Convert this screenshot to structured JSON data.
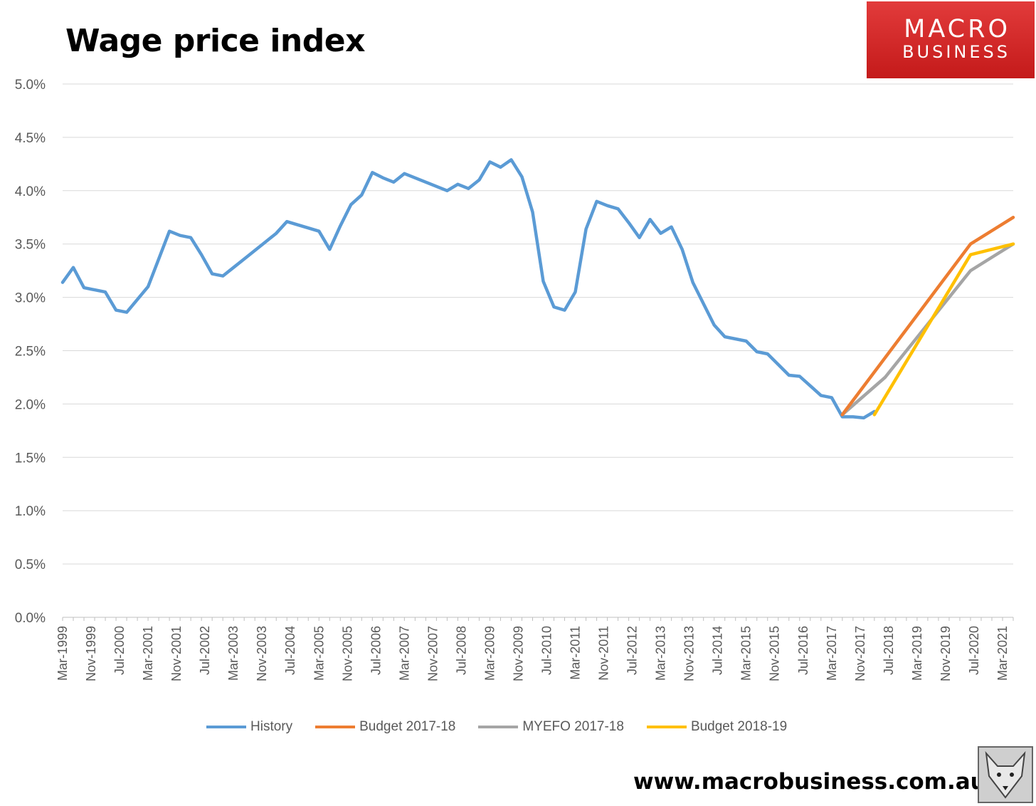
{
  "chart_data": {
    "type": "line",
    "title": "Wage price index",
    "xlabel": "",
    "ylabel": "",
    "ylim": [
      0,
      5
    ],
    "y_ticks": [
      "0.0%",
      "0.5%",
      "1.0%",
      "1.5%",
      "2.0%",
      "2.5%",
      "3.0%",
      "3.5%",
      "4.0%",
      "4.5%",
      "5.0%"
    ],
    "x_ticks": [
      "Mar-1999",
      "Nov-1999",
      "Jul-2000",
      "Mar-2001",
      "Nov-2001",
      "Jul-2002",
      "Mar-2003",
      "Nov-2003",
      "Jul-2004",
      "Mar-2005",
      "Nov-2005",
      "Jul-2006",
      "Mar-2007",
      "Nov-2007",
      "Jul-2008",
      "Mar-2009",
      "Nov-2009",
      "Jul-2010",
      "Mar-2011",
      "Nov-2011",
      "Jul-2012",
      "Mar-2013",
      "Nov-2013",
      "Jul-2014",
      "Mar-2015",
      "Nov-2015",
      "Jul-2016",
      "Mar-2017",
      "Nov-2017",
      "Jul-2018",
      "Mar-2019",
      "Nov-2019",
      "Jul-2020",
      "Mar-2021"
    ],
    "grid": true,
    "legend_position": "bottom",
    "series": [
      {
        "name": "History",
        "color": "#5b9bd5",
        "points": [
          [
            "1999-03",
            3.14
          ],
          [
            "1999-06",
            3.28
          ],
          [
            "1999-09",
            3.09
          ],
          [
            "1999-12",
            3.07
          ],
          [
            "2000-03",
            3.05
          ],
          [
            "2000-06",
            2.88
          ],
          [
            "2000-09",
            2.86
          ],
          [
            "2000-12",
            2.98
          ],
          [
            "2001-03",
            3.1
          ],
          [
            "2001-06",
            3.36
          ],
          [
            "2001-09",
            3.62
          ],
          [
            "2001-12",
            3.58
          ],
          [
            "2002-03",
            3.56
          ],
          [
            "2002-06",
            3.4
          ],
          [
            "2002-09",
            3.22
          ],
          [
            "2002-12",
            3.2
          ],
          [
            "2003-03",
            3.28
          ],
          [
            "2003-06",
            3.36
          ],
          [
            "2003-09",
            3.44
          ],
          [
            "2003-12",
            3.52
          ],
          [
            "2004-03",
            3.6
          ],
          [
            "2004-06",
            3.71
          ],
          [
            "2004-09",
            3.68
          ],
          [
            "2004-12",
            3.65
          ],
          [
            "2005-03",
            3.62
          ],
          [
            "2005-06",
            3.45
          ],
          [
            "2005-09",
            3.67
          ],
          [
            "2005-12",
            3.87
          ],
          [
            "2006-03",
            3.96
          ],
          [
            "2006-06",
            4.17
          ],
          [
            "2006-09",
            4.12
          ],
          [
            "2006-12",
            4.08
          ],
          [
            "2007-03",
            4.16
          ],
          [
            "2007-06",
            4.12
          ],
          [
            "2007-09",
            4.08
          ],
          [
            "2007-12",
            4.04
          ],
          [
            "2008-03",
            4.0
          ],
          [
            "2008-06",
            4.06
          ],
          [
            "2008-09",
            4.02
          ],
          [
            "2008-12",
            4.1
          ],
          [
            "2009-03",
            4.27
          ],
          [
            "2009-06",
            4.22
          ],
          [
            "2009-09",
            4.29
          ],
          [
            "2009-12",
            4.13
          ],
          [
            "2010-03",
            3.8
          ],
          [
            "2010-06",
            3.15
          ],
          [
            "2010-09",
            2.91
          ],
          [
            "2010-12",
            2.88
          ],
          [
            "2011-03",
            3.05
          ],
          [
            "2011-06",
            3.64
          ],
          [
            "2011-09",
            3.9
          ],
          [
            "2011-12",
            3.86
          ],
          [
            "2012-03",
            3.83
          ],
          [
            "2012-06",
            3.7
          ],
          [
            "2012-09",
            3.56
          ],
          [
            "2012-12",
            3.73
          ],
          [
            "2013-03",
            3.6
          ],
          [
            "2013-06",
            3.66
          ],
          [
            "2013-09",
            3.45
          ],
          [
            "2013-12",
            3.14
          ],
          [
            "2014-03",
            2.94
          ],
          [
            "2014-06",
            2.74
          ],
          [
            "2014-09",
            2.63
          ],
          [
            "2014-12",
            2.61
          ],
          [
            "2015-03",
            2.59
          ],
          [
            "2015-06",
            2.49
          ],
          [
            "2015-09",
            2.47
          ],
          [
            "2015-12",
            2.37
          ],
          [
            "2016-03",
            2.27
          ],
          [
            "2016-06",
            2.26
          ],
          [
            "2016-09",
            2.17
          ],
          [
            "2016-12",
            2.08
          ],
          [
            "2017-03",
            2.06
          ],
          [
            "2017-06",
            1.88
          ],
          [
            "2017-09",
            1.88
          ],
          [
            "2017-12",
            1.87
          ],
          [
            "2018-03",
            1.93
          ]
        ]
      },
      {
        "name": "Budget 2017-18",
        "color": "#ed7d31",
        "points": [
          [
            "2017-06",
            1.9
          ],
          [
            "2020-06",
            3.5
          ],
          [
            "2021-06",
            3.75
          ]
        ]
      },
      {
        "name": "MYEFO 2017-18",
        "color": "#a5a5a5",
        "points": [
          [
            "2017-06",
            1.9
          ],
          [
            "2018-06",
            2.25
          ],
          [
            "2020-06",
            3.25
          ],
          [
            "2021-06",
            3.5
          ]
        ]
      },
      {
        "name": "Budget 2018-19",
        "color": "#ffc000",
        "points": [
          [
            "2018-03",
            1.9
          ],
          [
            "2020-06",
            3.4
          ],
          [
            "2021-06",
            3.5
          ]
        ]
      }
    ]
  },
  "header": {
    "logo_top": "MACRO",
    "logo_bottom": "BUSINESS"
  },
  "footer": {
    "website": "www.macrobusiness.com.au"
  }
}
